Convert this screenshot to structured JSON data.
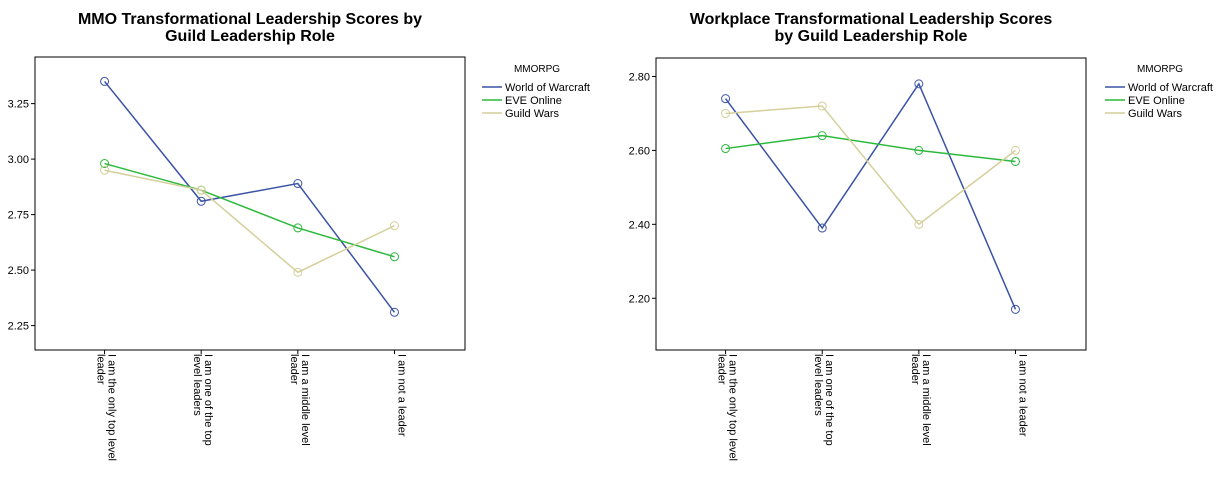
{
  "chart_data": [
    {
      "type": "line",
      "title": "MMO Transformational Leadership Scores by Guild Leadership Role",
      "categories": [
        "I am the only top level leader",
        "I am one of the top level leaders",
        "I am a middle level leader",
        "I am not a leader"
      ],
      "series": [
        {
          "name": "World of Warcraft",
          "color": "#3a53a4",
          "values": [
            3.35,
            2.81,
            2.89,
            2.31
          ]
        },
        {
          "name": "EVE Online",
          "color": "#2db83d",
          "values": [
            2.98,
            2.86,
            2.69,
            2.56
          ]
        },
        {
          "name": "Guild Wars",
          "color": "#d4cf9b",
          "values": [
            2.95,
            2.86,
            2.49,
            2.7
          ]
        }
      ],
      "legend_title": "MMORPG",
      "ylim": [
        2.14,
        3.46
      ],
      "yticks": [
        3.25,
        {
          "value": 3,
          "label": "3.00"
        },
        2.75,
        {
          "value": 2.5,
          "label": "2.50"
        },
        2.25
      ]
    },
    {
      "type": "line",
      "title": "Workplace Transformational Leadership Scores by Guild Leadership Role",
      "categories": [
        "I am the only top level leader",
        "I am one of the top level leaders",
        "I am a middle level leader",
        "I am not a leader"
      ],
      "series": [
        {
          "name": "World of Warcraft",
          "color": "#3a53a4",
          "values": [
            2.74,
            2.39,
            2.78,
            2.17
          ]
        },
        {
          "name": "EVE Online",
          "color": "#2db83d",
          "values": [
            2.605,
            2.64,
            2.6,
            2.57
          ]
        },
        {
          "name": "Guild Wars",
          "color": "#d4cf9b",
          "values": [
            2.7,
            2.72,
            2.4,
            2.6
          ]
        }
      ],
      "legend_title": "MMORPG",
      "ylim": [
        2.06,
        2.85
      ],
      "yticks": [
        {
          "value": 2.8,
          "label": "2.80"
        },
        {
          "value": 2.6,
          "label": "2.60"
        },
        {
          "value": 2.4,
          "label": "2.40"
        },
        {
          "value": 2.2,
          "label": "2.20"
        }
      ]
    }
  ]
}
